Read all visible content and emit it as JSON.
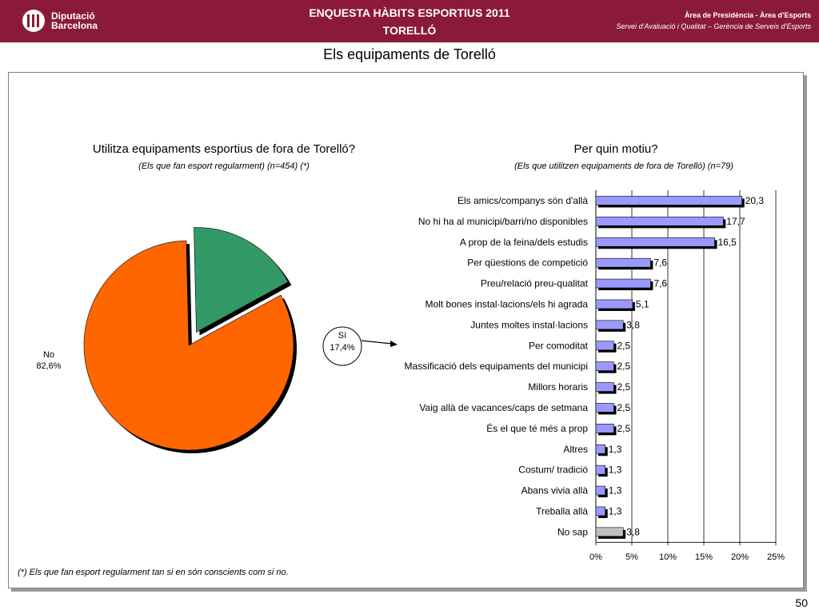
{
  "header": {
    "logo_line1": "Diputació",
    "logo_line2": "Barcelona",
    "title_line1": "ENQUESTA HÀBITS ESPORTIUS 2011",
    "title_line2": "TORELLÓ",
    "right_line1": "Àrea de Presidència  -  Àrea d’Esports",
    "right_line2": "Servei d’Avaluació i Qualitat – Gerència de Serveis d’Esports",
    "bg_color": "#8b1a3a"
  },
  "page_title": "Els equipaments de Torelló",
  "footnote": "(*) Els que fan esport regularment tan si en són conscients com si no.",
  "page_number": "50",
  "chart_data": [
    {
      "type": "pie",
      "title": "Utilitza equipaments esportius de fora de Torelló?",
      "subtitle": "(Els que fan esport regularment) (n=454) (*)",
      "slices": [
        {
          "label": "No",
          "value": 82.6,
          "value_label": "82,6%",
          "color": "#ff6600",
          "exploded": false
        },
        {
          "label": "Sí",
          "value": 17.4,
          "value_label": "17,4%",
          "color": "#339966",
          "exploded": true
        }
      ]
    },
    {
      "type": "bar",
      "orientation": "horizontal",
      "title": "Per quin motiu?",
      "subtitle": "(Els que utilitzen equipaments de fora de Torelló) (n=79)",
      "categories": [
        "Els amics/companys són d'allà",
        "No hi ha al municipi/barri/no disponibles",
        "A prop de la feina/dels estudis",
        "Per qüestions de competició",
        "Preu/relació preu-qualitat",
        "Molt bones instal·lacions/els hi agrada",
        "Juntes moltes instal·lacions",
        "Per comoditat",
        "Massificació dels equipaments del municipi",
        "Millors horaris",
        "Vaig allà de vacances/caps de setmana",
        "És el que té més a prop",
        "Altres",
        "Costum/ tradició",
        "Abans vivia allà",
        "Treballa allà",
        "No sap"
      ],
      "values": [
        20.3,
        17.7,
        16.5,
        7.6,
        7.6,
        5.1,
        3.8,
        2.5,
        2.5,
        2.5,
        2.5,
        2.5,
        1.3,
        1.3,
        1.3,
        1.3,
        3.8
      ],
      "value_labels": [
        "20,3",
        "17,7",
        "16,5",
        "7,6",
        "7,6",
        "5,1",
        "3,8",
        "2,5",
        "2,5",
        "2,5",
        "2,5",
        "2,5",
        "1,3",
        "1,3",
        "1,3",
        "1,3",
        "3,8"
      ],
      "bar_colors": [
        "#9999ff",
        "#9999ff",
        "#9999ff",
        "#9999ff",
        "#9999ff",
        "#9999ff",
        "#9999ff",
        "#9999ff",
        "#9999ff",
        "#9999ff",
        "#9999ff",
        "#9999ff",
        "#9999ff",
        "#9999ff",
        "#9999ff",
        "#9999ff",
        "#c0c0c0"
      ],
      "xlim": [
        0,
        25
      ],
      "x_ticks": [
        0,
        5,
        10,
        15,
        20,
        25
      ],
      "x_tick_labels": [
        "0%",
        "5%",
        "10%",
        "15%",
        "20%",
        "25%"
      ],
      "grid": true
    }
  ]
}
